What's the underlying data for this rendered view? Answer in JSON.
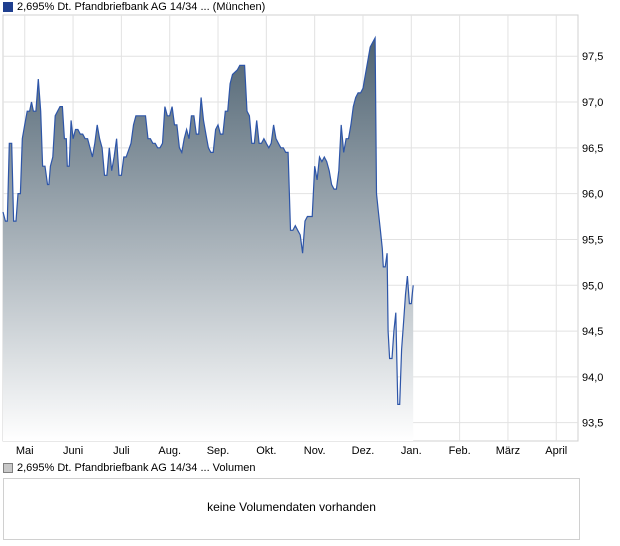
{
  "legend": {
    "price": "2,695% Dt. Pfandbriefbank AG 14/34 ... (München)",
    "volume": "2,695% Dt. Pfandbriefbank AG 14/34 ... Volumen"
  },
  "volume_panel": {
    "message": "keine Volumendaten vorhanden"
  },
  "colors": {
    "line": "#2d55a8",
    "fill_top": "#4f6372",
    "fill_bottom": "#ffffff"
  },
  "chart_data": {
    "type": "area",
    "title": "",
    "xlabel": "",
    "ylabel": "",
    "x_tick_labels": [
      "Mai",
      "Juni",
      "Juli",
      "Aug.",
      "Sep.",
      "Okt.",
      "Nov.",
      "Dez.",
      "Jan.",
      "Feb.",
      "März",
      "April"
    ],
    "y_tick_labels": [
      "93,5",
      "94,0",
      "94,5",
      "95,0",
      "95,5",
      "96,0",
      "96,5",
      "97,0",
      "97,5"
    ],
    "y_ticks": [
      93.5,
      94.0,
      94.5,
      95.0,
      95.5,
      96.0,
      96.5,
      97.0,
      97.5
    ],
    "ylim": [
      93.3,
      97.95
    ],
    "x_range_months": [
      -0.45,
      11.45
    ],
    "y_axis_position": "right",
    "grid": true,
    "legend_position": "top-left",
    "series": [
      {
        "values": [
          [
            -0.45,
            95.8
          ],
          [
            -0.4,
            95.7
          ],
          [
            -0.36,
            95.7
          ],
          [
            -0.32,
            96.55
          ],
          [
            -0.27,
            96.55
          ],
          [
            -0.23,
            95.7
          ],
          [
            -0.18,
            95.7
          ],
          [
            -0.14,
            96.0
          ],
          [
            -0.09,
            96.0
          ],
          [
            -0.05,
            96.6
          ],
          [
            0.0,
            96.75
          ],
          [
            0.05,
            96.9
          ],
          [
            0.1,
            96.9
          ],
          [
            0.14,
            97.0
          ],
          [
            0.18,
            96.9
          ],
          [
            0.23,
            96.9
          ],
          [
            0.28,
            97.25
          ],
          [
            0.33,
            96.9
          ],
          [
            0.37,
            96.3
          ],
          [
            0.42,
            96.3
          ],
          [
            0.47,
            96.1
          ],
          [
            0.5,
            96.1
          ],
          [
            0.53,
            96.3
          ],
          [
            0.58,
            96.4
          ],
          [
            0.63,
            96.85
          ],
          [
            0.68,
            96.9
          ],
          [
            0.73,
            96.95
          ],
          [
            0.78,
            96.95
          ],
          [
            0.82,
            96.6
          ],
          [
            0.86,
            96.6
          ],
          [
            0.88,
            96.3
          ],
          [
            0.92,
            96.3
          ],
          [
            0.96,
            96.8
          ],
          [
            1.0,
            96.6
          ],
          [
            1.05,
            96.7
          ],
          [
            1.1,
            96.7
          ],
          [
            1.15,
            96.65
          ],
          [
            1.2,
            96.65
          ],
          [
            1.25,
            96.6
          ],
          [
            1.3,
            96.6
          ],
          [
            1.35,
            96.5
          ],
          [
            1.4,
            96.4
          ],
          [
            1.45,
            96.55
          ],
          [
            1.5,
            96.75
          ],
          [
            1.55,
            96.6
          ],
          [
            1.6,
            96.5
          ],
          [
            1.65,
            96.2
          ],
          [
            1.7,
            96.2
          ],
          [
            1.75,
            96.5
          ],
          [
            1.8,
            96.25
          ],
          [
            1.85,
            96.4
          ],
          [
            1.9,
            96.6
          ],
          [
            1.95,
            96.2
          ],
          [
            2.0,
            96.2
          ],
          [
            2.05,
            96.4
          ],
          [
            2.1,
            96.4
          ],
          [
            2.2,
            96.55
          ],
          [
            2.25,
            96.75
          ],
          [
            2.3,
            96.85
          ],
          [
            2.35,
            96.85
          ],
          [
            2.5,
            96.85
          ],
          [
            2.55,
            96.6
          ],
          [
            2.6,
            96.6
          ],
          [
            2.65,
            96.55
          ],
          [
            2.7,
            96.55
          ],
          [
            2.75,
            96.5
          ],
          [
            2.8,
            96.5
          ],
          [
            2.85,
            96.55
          ],
          [
            2.9,
            96.95
          ],
          [
            2.95,
            96.85
          ],
          [
            3.0,
            96.85
          ],
          [
            3.05,
            96.95
          ],
          [
            3.1,
            96.75
          ],
          [
            3.15,
            96.75
          ],
          [
            3.2,
            96.5
          ],
          [
            3.25,
            96.45
          ],
          [
            3.3,
            96.6
          ],
          [
            3.35,
            96.7
          ],
          [
            3.4,
            96.6
          ],
          [
            3.45,
            96.85
          ],
          [
            3.5,
            96.85
          ],
          [
            3.55,
            96.65
          ],
          [
            3.6,
            96.65
          ],
          [
            3.65,
            97.05
          ],
          [
            3.7,
            96.8
          ],
          [
            3.75,
            96.65
          ],
          [
            3.8,
            96.5
          ],
          [
            3.85,
            96.45
          ],
          [
            3.9,
            96.45
          ],
          [
            3.95,
            96.7
          ],
          [
            4.0,
            96.75
          ],
          [
            4.05,
            96.65
          ],
          [
            4.1,
            96.65
          ],
          [
            4.15,
            96.9
          ],
          [
            4.2,
            96.9
          ],
          [
            4.25,
            97.2
          ],
          [
            4.3,
            97.3
          ],
          [
            4.4,
            97.35
          ],
          [
            4.45,
            97.4
          ],
          [
            4.55,
            97.4
          ],
          [
            4.6,
            96.9
          ],
          [
            4.65,
            96.85
          ],
          [
            4.7,
            96.55
          ],
          [
            4.75,
            96.55
          ],
          [
            4.8,
            96.8
          ],
          [
            4.85,
            96.55
          ],
          [
            4.9,
            96.55
          ],
          [
            4.95,
            96.6
          ],
          [
            5.0,
            96.55
          ],
          [
            5.05,
            96.5
          ],
          [
            5.1,
            96.55
          ],
          [
            5.15,
            96.75
          ],
          [
            5.2,
            96.6
          ],
          [
            5.25,
            96.55
          ],
          [
            5.3,
            96.5
          ],
          [
            5.35,
            96.5
          ],
          [
            5.4,
            96.45
          ],
          [
            5.45,
            96.45
          ],
          [
            5.5,
            95.6
          ],
          [
            5.55,
            95.6
          ],
          [
            5.6,
            95.65
          ],
          [
            5.65,
            95.6
          ],
          [
            5.7,
            95.55
          ],
          [
            5.75,
            95.35
          ],
          [
            5.8,
            95.7
          ],
          [
            5.85,
            95.75
          ],
          [
            5.95,
            95.75
          ],
          [
            6.0,
            96.3
          ],
          [
            6.05,
            96.15
          ],
          [
            6.1,
            96.4
          ],
          [
            6.15,
            96.35
          ],
          [
            6.2,
            96.4
          ],
          [
            6.25,
            96.35
          ],
          [
            6.3,
            96.25
          ],
          [
            6.35,
            96.1
          ],
          [
            6.4,
            96.05
          ],
          [
            6.45,
            96.05
          ],
          [
            6.5,
            96.25
          ],
          [
            6.55,
            96.75
          ],
          [
            6.6,
            96.45
          ],
          [
            6.65,
            96.6
          ],
          [
            6.7,
            96.6
          ],
          [
            6.75,
            96.75
          ],
          [
            6.8,
            96.95
          ],
          [
            6.85,
            97.05
          ],
          [
            6.9,
            97.1
          ],
          [
            6.95,
            97.1
          ],
          [
            7.0,
            97.15
          ],
          [
            7.05,
            97.3
          ],
          [
            7.1,
            97.45
          ],
          [
            7.15,
            97.6
          ],
          [
            7.2,
            97.65
          ],
          [
            7.25,
            97.7
          ],
          [
            7.28,
            96.0
          ],
          [
            7.32,
            95.8
          ],
          [
            7.36,
            95.6
          ],
          [
            7.4,
            95.4
          ],
          [
            7.42,
            95.2
          ],
          [
            7.46,
            95.2
          ],
          [
            7.5,
            95.35
          ],
          [
            7.52,
            94.5
          ],
          [
            7.55,
            94.2
          ],
          [
            7.6,
            94.2
          ],
          [
            7.64,
            94.5
          ],
          [
            7.68,
            94.7
          ],
          [
            7.72,
            93.7
          ],
          [
            7.76,
            93.7
          ],
          [
            7.8,
            94.3
          ],
          [
            7.84,
            94.6
          ],
          [
            7.88,
            94.9
          ],
          [
            7.92,
            95.1
          ],
          [
            7.96,
            94.8
          ],
          [
            8.0,
            94.8
          ],
          [
            8.04,
            95.0
          ]
        ]
      }
    ]
  }
}
